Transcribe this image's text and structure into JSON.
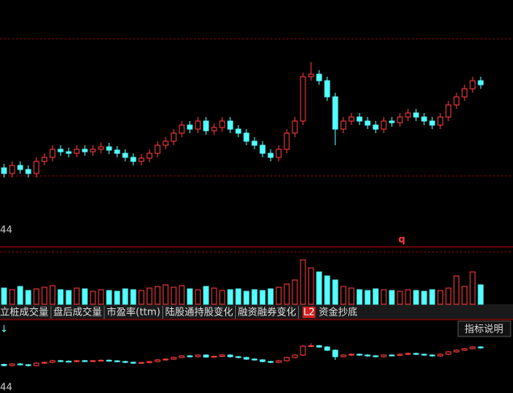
{
  "chart_data": {
    "type": "candlestick",
    "x_label_left": "44",
    "marker": "q",
    "open": [
      14.2,
      13.5,
      14.5,
      14,
      13.5,
      15,
      15.5,
      16.5,
      16.2,
      16,
      16.5,
      16.2,
      16.5,
      16.8,
      16.4,
      16,
      15.5,
      15,
      15.4,
      16,
      17,
      17.5,
      18.5,
      19.5,
      19,
      20,
      18.8,
      19.2,
      20,
      19,
      18.5,
      17.5,
      17,
      16,
      15.5,
      16.5,
      18.5,
      20,
      25.5,
      25.8,
      25,
      23,
      19,
      20,
      20.5,
      20,
      19.5,
      19,
      20,
      19.8,
      20.5,
      21,
      20.5,
      20,
      19.5,
      20.5,
      22,
      23,
      24,
      25
    ],
    "high": [
      14.7,
      15.0,
      15.0,
      14.5,
      15.5,
      16.0,
      17.0,
      17.0,
      16.7,
      17.0,
      17.0,
      17.0,
      17.3,
      17.3,
      16.9,
      16.5,
      16.0,
      15.9,
      16.5,
      17.5,
      18.0,
      19.0,
      20.0,
      20.0,
      20.5,
      20.5,
      19.7,
      20.5,
      20.5,
      19.5,
      19.0,
      18.0,
      17.5,
      16.5,
      17.0,
      19.0,
      20.5,
      26.0,
      27.3,
      26.3,
      25.5,
      23.5,
      20.5,
      21.0,
      21.0,
      20.5,
      20.0,
      20.5,
      20.5,
      21.0,
      21.5,
      21.5,
      21.0,
      20.5,
      21.0,
      22.5,
      23.5,
      24.5,
      25.5,
      25.5
    ],
    "low": [
      13.0,
      13.0,
      13.5,
      13.0,
      13.0,
      14.5,
      15.0,
      15.7,
      15.5,
      15.5,
      15.7,
      15.7,
      16.0,
      15.9,
      15.5,
      15.0,
      14.5,
      14.5,
      14.9,
      15.5,
      16.5,
      17.0,
      18.0,
      18.5,
      18.5,
      18.3,
      18.3,
      18.7,
      18.5,
      18.0,
      17.0,
      16.5,
      15.5,
      15.0,
      15.0,
      16.0,
      18.0,
      19.5,
      25.0,
      24.5,
      22.5,
      17.0,
      18.5,
      19.5,
      19.5,
      19.0,
      18.5,
      18.5,
      19.3,
      19.3,
      20.0,
      20.0,
      19.5,
      19.0,
      19.0,
      20.0,
      21.5,
      22.5,
      23.5,
      24.0
    ],
    "close": [
      13.5,
      14.5,
      14,
      13.5,
      15,
      15.5,
      16.5,
      16.2,
      16,
      16.5,
      16.2,
      16.5,
      16.8,
      16.4,
      16,
      15.5,
      15,
      15.4,
      16,
      17,
      17.5,
      18.5,
      19.5,
      19,
      20,
      18.8,
      19.2,
      20,
      19,
      18.5,
      17.5,
      17,
      16,
      15.5,
      16.5,
      18.5,
      20,
      25.5,
      25.8,
      25,
      23,
      19,
      20,
      20.5,
      20,
      19.5,
      19,
      20,
      19.8,
      20.5,
      21,
      20.5,
      20,
      19.5,
      20.5,
      22,
      23,
      24,
      25,
      24.5
    ],
    "volume": [
      20,
      18,
      22,
      17,
      19,
      21,
      23,
      18,
      17,
      20,
      19,
      16,
      18,
      17,
      16,
      19,
      18,
      17,
      20,
      22,
      24,
      21,
      23,
      19,
      18,
      22,
      20,
      17,
      18,
      19,
      16,
      18,
      17,
      19,
      21,
      25,
      30,
      55,
      45,
      40,
      35,
      30,
      22,
      20,
      18,
      17,
      19,
      18,
      17,
      16,
      18,
      17,
      16,
      18,
      17,
      20,
      35,
      22,
      40,
      24
    ],
    "ylim": [
      5,
      30
    ],
    "vlim": [
      0,
      60
    ],
    "up_color": "#ff3c3c",
    "down_color": "#54ffff"
  },
  "tabs": [
    "立桩成交量",
    "盘后成交量",
    "市盈率(ttm)",
    "陆股通持股变化",
    "融资融券变化",
    "L2",
    "资金抄底"
  ],
  "button": "指标说明",
  "bottom_label": "44"
}
